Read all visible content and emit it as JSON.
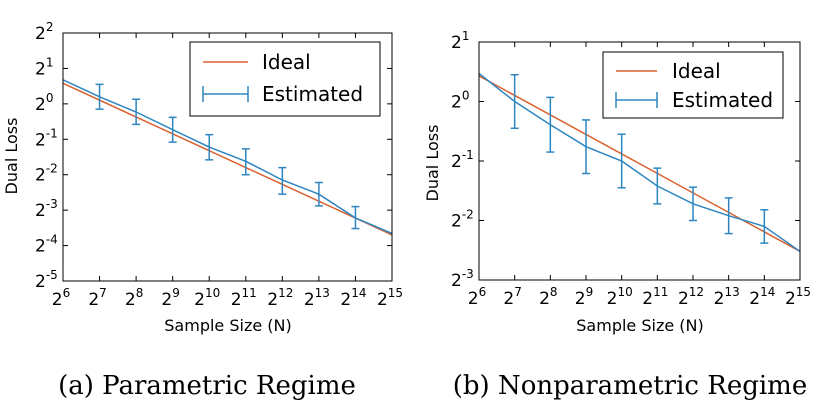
{
  "chart_data": [
    {
      "type": "line",
      "caption": "(a) Parametric Regime",
      "xlabel": "Sample Size (N)",
      "ylabel": "Dual Loss",
      "x_scale": "log2",
      "y_scale": "log2",
      "xlim_exp": [
        6,
        15
      ],
      "ylim_exp": [
        -5,
        2
      ],
      "x_ticks": [
        {
          "base": "2",
          "exp": "6"
        },
        {
          "base": "2",
          "exp": "7"
        },
        {
          "base": "2",
          "exp": "8"
        },
        {
          "base": "2",
          "exp": "9"
        },
        {
          "base": "2",
          "exp": "10"
        },
        {
          "base": "2",
          "exp": "11"
        },
        {
          "base": "2",
          "exp": "12"
        },
        {
          "base": "2",
          "exp": "13"
        },
        {
          "base": "2",
          "exp": "14"
        },
        {
          "base": "2",
          "exp": "15"
        }
      ],
      "y_ticks": [
        {
          "base": "2",
          "exp": "2"
        },
        {
          "base": "2",
          "exp": "1"
        },
        {
          "base": "2",
          "exp": "0"
        },
        {
          "base": "2",
          "exp": "-1"
        },
        {
          "base": "2",
          "exp": "-2"
        },
        {
          "base": "2",
          "exp": "-3"
        },
        {
          "base": "2",
          "exp": "-4"
        },
        {
          "base": "2",
          "exp": "-5"
        }
      ],
      "legend": {
        "position": "top-right",
        "entries": [
          "Ideal",
          "Estimated"
        ]
      },
      "series": [
        {
          "name": "Ideal",
          "color": "#d9602e",
          "x_exp": [
            6,
            15
          ],
          "y_exp": [
            0.58,
            -3.7
          ]
        },
        {
          "name": "Estimated",
          "color": "#2e86c1",
          "x_exp": [
            6,
            7,
            8,
            9,
            10,
            11,
            12,
            13,
            14,
            15
          ],
          "y_exp": [
            0.68,
            0.2,
            -0.23,
            -0.73,
            -1.22,
            -1.62,
            -2.15,
            -2.55,
            -3.22,
            -3.66
          ],
          "err_lo": [
            0.68,
            -0.15,
            -0.58,
            -1.08,
            -1.58,
            -2.0,
            -2.55,
            -2.88,
            -3.52,
            -3.66
          ],
          "err_hi": [
            0.68,
            0.55,
            0.13,
            -0.38,
            -0.87,
            -1.27,
            -1.8,
            -2.22,
            -2.9,
            -3.66
          ]
        }
      ]
    },
    {
      "type": "line",
      "caption": "(b) Nonparametric Regime",
      "xlabel": "Sample Size (N)",
      "ylabel": "Dual Loss",
      "x_scale": "log2",
      "y_scale": "log2",
      "xlim_exp": [
        6,
        15
      ],
      "ylim_exp": [
        -3,
        1
      ],
      "x_ticks": [
        {
          "base": "2",
          "exp": "6"
        },
        {
          "base": "2",
          "exp": "7"
        },
        {
          "base": "2",
          "exp": "8"
        },
        {
          "base": "2",
          "exp": "9"
        },
        {
          "base": "2",
          "exp": "10"
        },
        {
          "base": "2",
          "exp": "11"
        },
        {
          "base": "2",
          "exp": "12"
        },
        {
          "base": "2",
          "exp": "13"
        },
        {
          "base": "2",
          "exp": "14"
        },
        {
          "base": "2",
          "exp": "15"
        }
      ],
      "y_ticks": [
        {
          "base": "2",
          "exp": "1"
        },
        {
          "base": "2",
          "exp": "0"
        },
        {
          "base": "2",
          "exp": "-1"
        },
        {
          "base": "2",
          "exp": "-2"
        },
        {
          "base": "2",
          "exp": "-3"
        }
      ],
      "legend": {
        "position": "top-right",
        "entries": [
          "Ideal",
          "Estimated"
        ]
      },
      "series": [
        {
          "name": "Ideal",
          "color": "#d9602e",
          "x_exp": [
            6,
            15
          ],
          "y_exp": [
            0.43,
            -2.52
          ]
        },
        {
          "name": "Estimated",
          "color": "#2e86c1",
          "x_exp": [
            6,
            7,
            8,
            9,
            10,
            11,
            12,
            13,
            14,
            15
          ],
          "y_exp": [
            0.47,
            0.0,
            -0.39,
            -0.76,
            -1.0,
            -1.42,
            -1.72,
            -1.92,
            -2.1,
            -2.52
          ],
          "err_lo": [
            0.47,
            -0.45,
            -0.85,
            -1.21,
            -1.45,
            -1.72,
            -2.0,
            -2.22,
            -2.38,
            -2.52
          ],
          "err_hi": [
            0.47,
            0.45,
            0.07,
            -0.31,
            -0.55,
            -1.12,
            -1.44,
            -1.62,
            -1.82,
            -2.52
          ]
        }
      ]
    }
  ]
}
